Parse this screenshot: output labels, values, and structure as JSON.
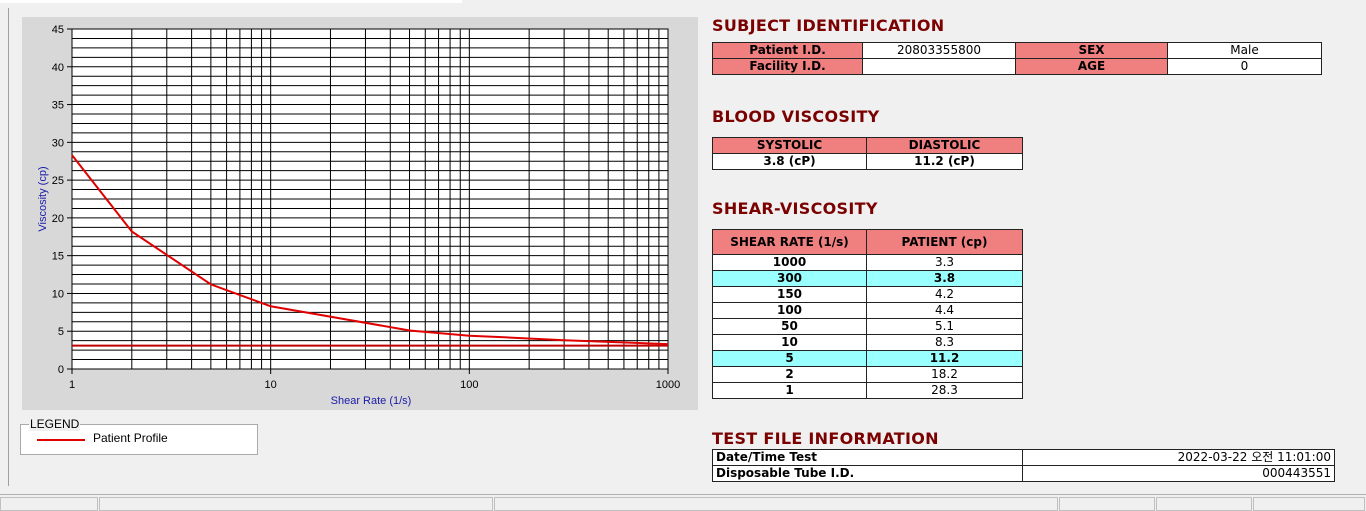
{
  "chart": {
    "type": "line",
    "xlabel": "Shear Rate (1/s)",
    "ylabel": "Viscosity (cp)",
    "log_x": true,
    "grid": true,
    "xlim": [
      1,
      1000
    ],
    "xticks": [
      1,
      10,
      100,
      1000
    ],
    "ylim": [
      0,
      45
    ],
    "yticks": [
      0,
      5,
      10,
      15,
      20,
      25,
      30,
      35,
      40,
      45
    ],
    "series": [
      {
        "name": "Patient Profile",
        "color": "#e00000",
        "x": [
          1,
          2,
          5,
          10,
          50,
          100,
          150,
          300,
          1000
        ],
        "values": [
          28.3,
          18.2,
          11.2,
          8.3,
          5.1,
          4.4,
          4.2,
          3.8,
          3.3
        ]
      },
      {
        "color": "#c00000",
        "x": [
          1,
          1000
        ],
        "values": [
          3.1,
          3.1
        ]
      }
    ],
    "legend_title": "LEGEND"
  },
  "subject_identification": {
    "title": "SUBJECT IDENTIFICATION",
    "rows": [
      [
        "Patient I.D.",
        "20803355800",
        "SEX",
        "Male"
      ],
      [
        "Facility I.D.",
        null,
        "AGE",
        0
      ]
    ]
  },
  "blood_viscosity": {
    "title": "BLOOD VISCOSITY",
    "headers": [
      "SYSTOLIC",
      "DIASTOLIC"
    ],
    "values": [
      "3.8 (cP)",
      "11.2 (cP)"
    ]
  },
  "shear_viscosity": {
    "title": "SHEAR-VISCOSITY",
    "headers": [
      "SHEAR RATE (1/s)",
      "PATIENT (cp)"
    ],
    "rows": [
      {
        "shear_rate": 1000,
        "patient": 3.3,
        "highlight": false
      },
      {
        "shear_rate": 300,
        "patient": 3.8,
        "highlight": true
      },
      {
        "shear_rate": 150,
        "patient": 4.2,
        "highlight": false
      },
      {
        "shear_rate": 100,
        "patient": 4.4,
        "highlight": false
      },
      {
        "shear_rate": 50,
        "patient": 5.1,
        "highlight": false
      },
      {
        "shear_rate": 10,
        "patient": 8.3,
        "highlight": false
      },
      {
        "shear_rate": 5,
        "patient": 11.2,
        "highlight": true
      },
      {
        "shear_rate": 2,
        "patient": 18.2,
        "highlight": false
      },
      {
        "shear_rate": 1,
        "patient": 28.3,
        "highlight": false
      }
    ]
  },
  "test_file_information": {
    "title": "TEST FILE INFORMATION",
    "rows": [
      [
        "Date/Time Test",
        "2022-03-22   오전 11:01:00"
      ],
      [
        "Disposable Tube I.D.",
        "000443551"
      ]
    ]
  }
}
